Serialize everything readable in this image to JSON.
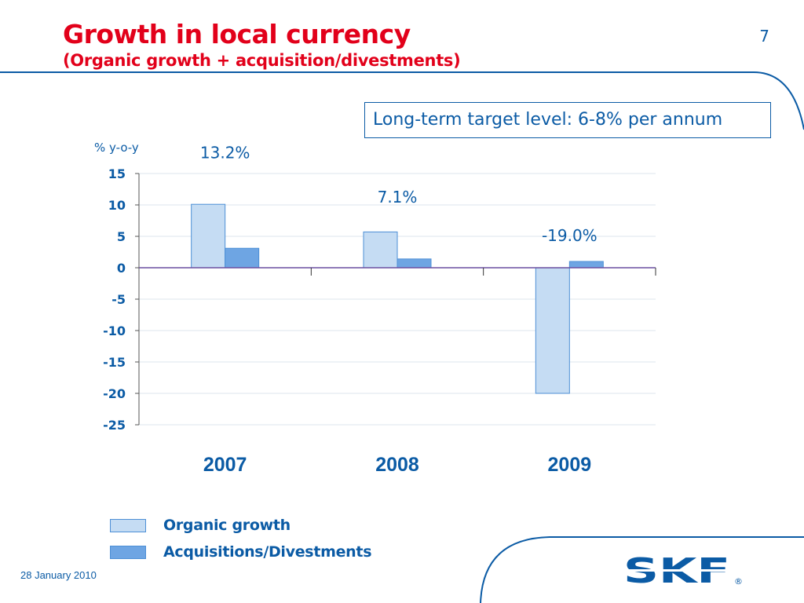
{
  "slide": {
    "title": "Growth in local currency",
    "subtitle": "(Organic growth + acquisition/divestments)",
    "page_number": "7",
    "target_note": "Long-term target level: 6-8% per annum",
    "date": "28 January 2010",
    "logo": "SKF",
    "logo_mark": "®"
  },
  "colors": {
    "title": "#e2001a",
    "text": "#0b5ba5",
    "organic": "#c5dcf3",
    "acquisitions": "#6ea5e3",
    "bar_border": "#4d8fd6",
    "zero_line": "#6a4fa0",
    "grid": "#dde5ee"
  },
  "chart_data": {
    "type": "bar",
    "ylabel": "% y-o-y",
    "ylim": [
      -25,
      15
    ],
    "yticks": [
      15,
      10,
      5,
      0,
      -5,
      -10,
      -15,
      -20,
      -25
    ],
    "grid": true,
    "categories": [
      "2007",
      "2008",
      "2009"
    ],
    "series": [
      {
        "name": "Organic growth",
        "values": [
          10.1,
          5.7,
          -20.0
        ]
      },
      {
        "name": "Acquisitions/Divestments",
        "values": [
          3.1,
          1.4,
          1.0
        ]
      }
    ],
    "total_labels": [
      "13.2%",
      "7.1%",
      "-19.0%"
    ],
    "legend_position": "bottom-left"
  }
}
